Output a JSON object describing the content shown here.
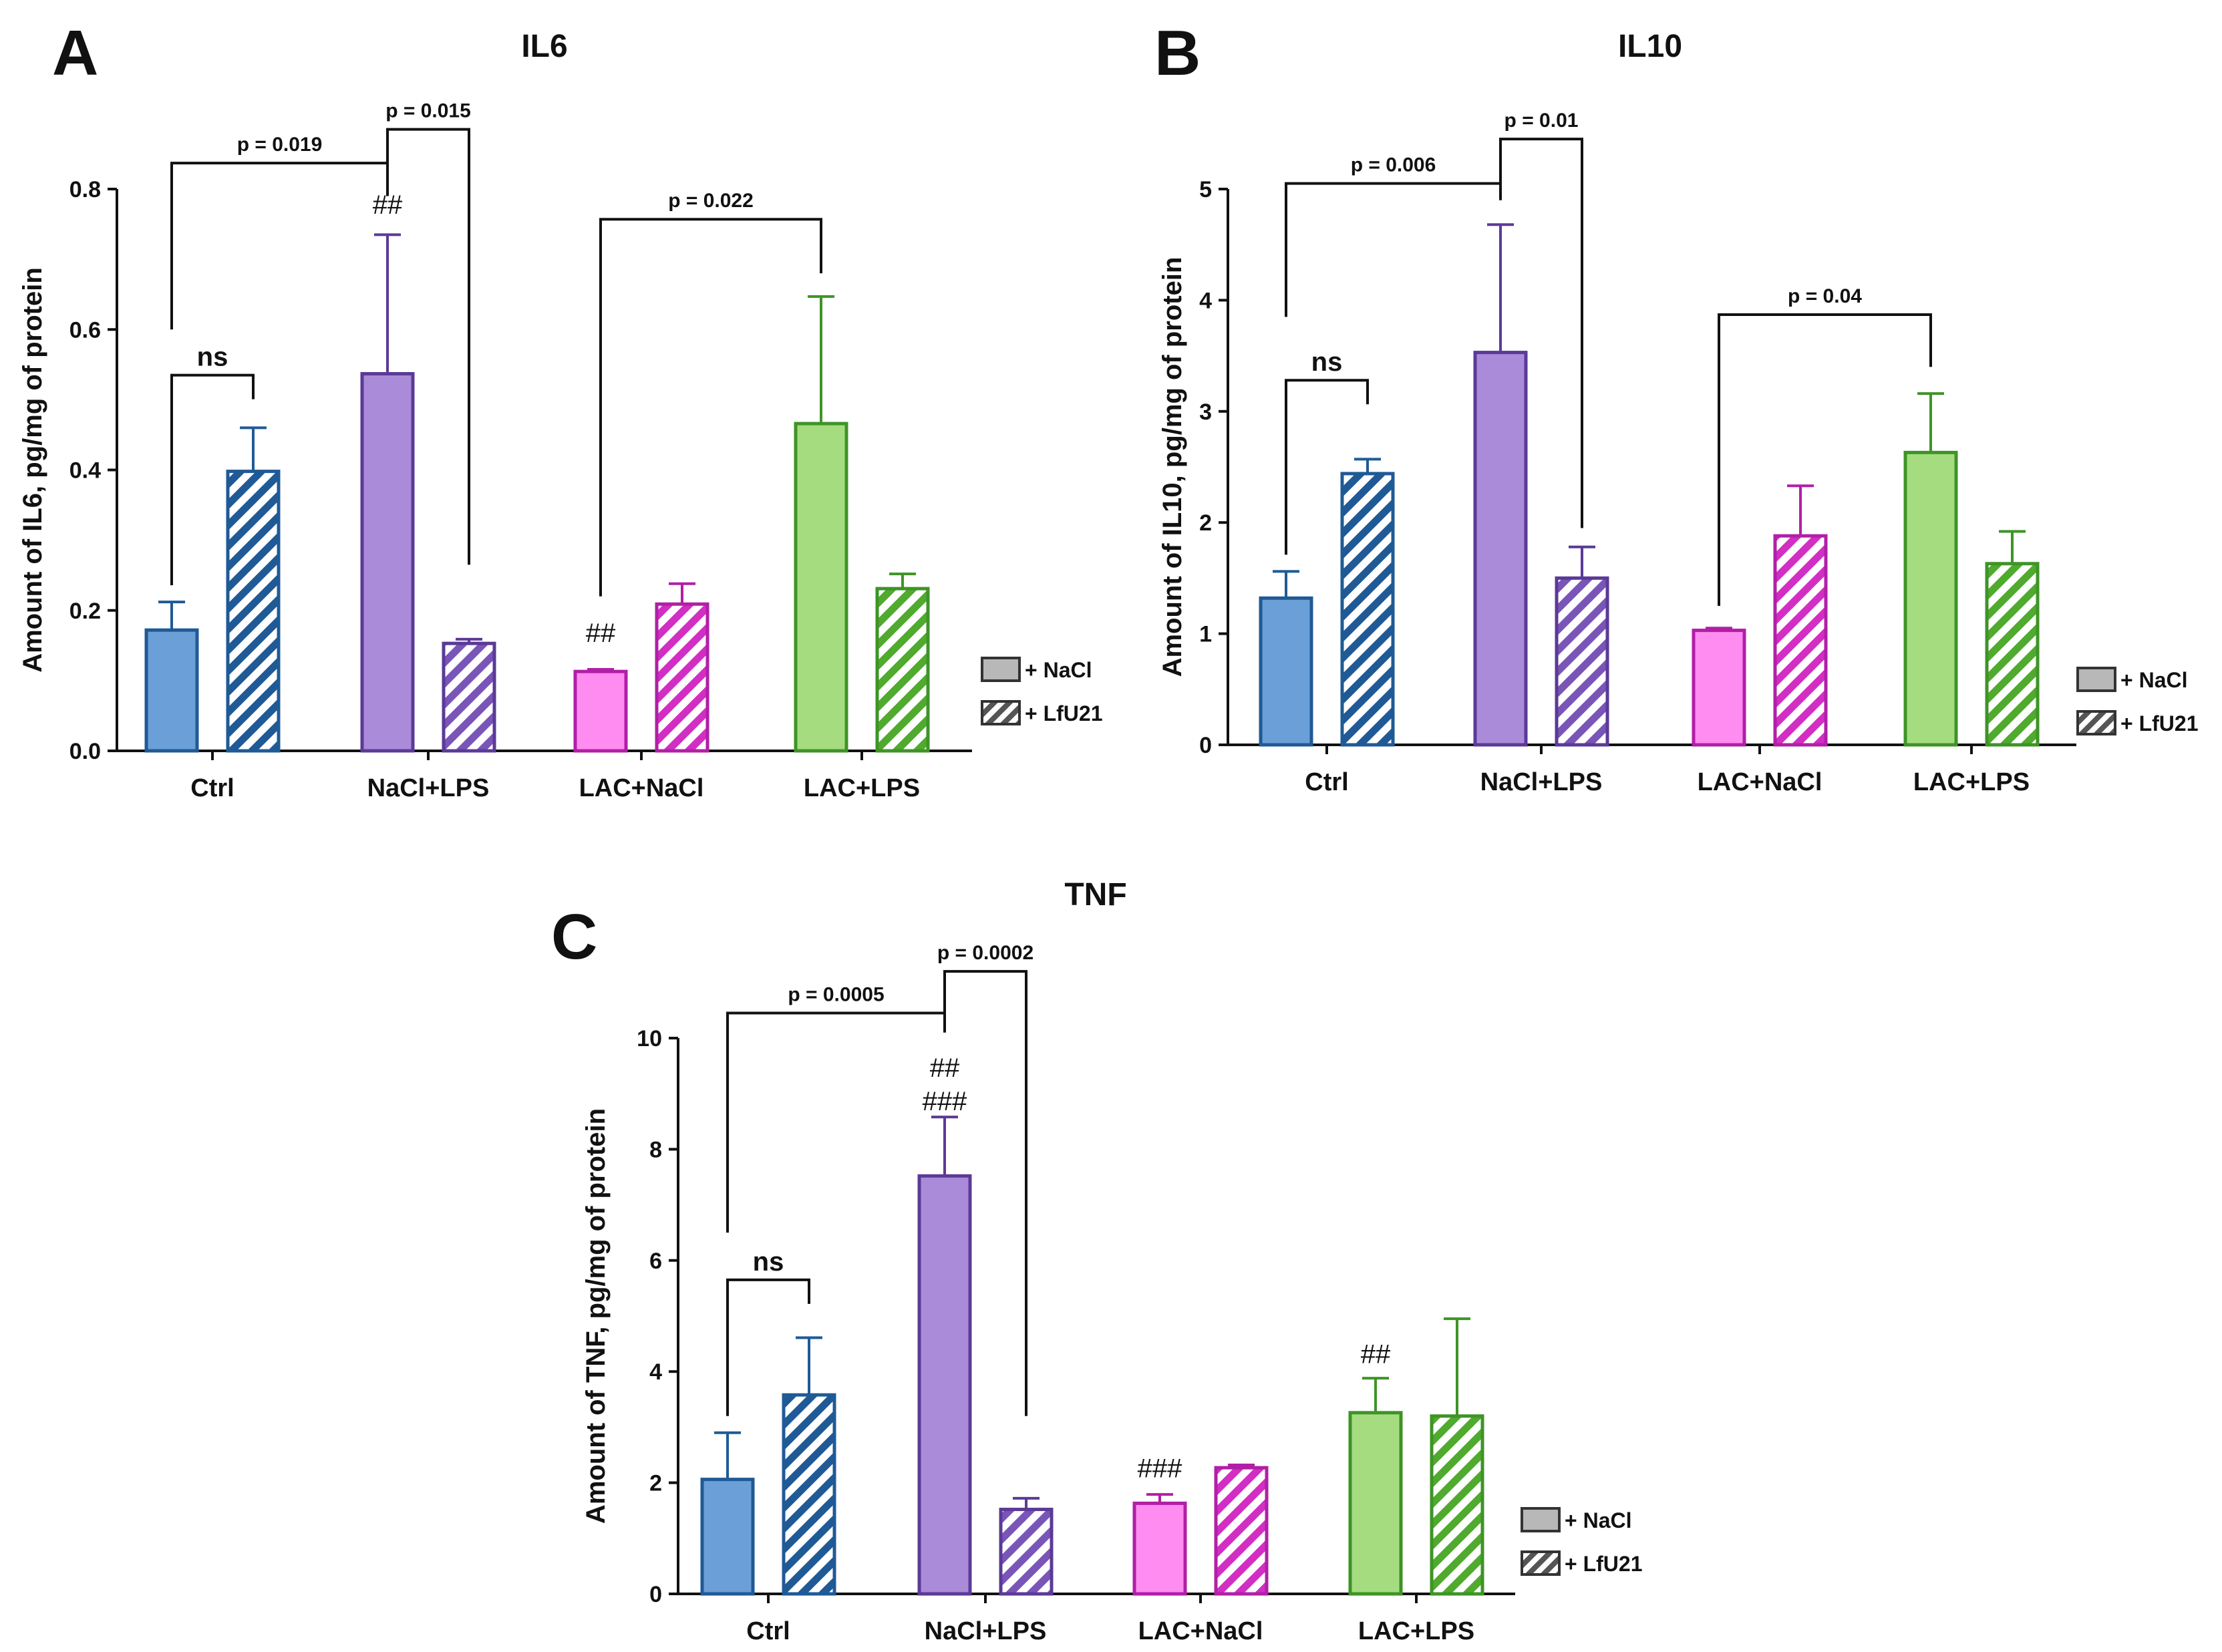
{
  "colors": {
    "Ctrl": {
      "fill": "#6a9fd8",
      "stroke": "#1f5a96"
    },
    "NaCl+LPS": {
      "fill": "#a98bd9",
      "stroke": "#5b3a97"
    },
    "LAC+NaCl": {
      "fill": "#ff8cf0",
      "stroke": "#b11fa6"
    },
    "LAC+LPS": {
      "fill": "#a6dc80",
      "stroke": "#3e9426"
    }
  },
  "legend": {
    "nacl_label": "+ NaCl",
    "lfu21_label": "+ LfU21"
  },
  "chart_data": [
    {
      "panel": "A",
      "type": "bar",
      "title": "IL6",
      "ylabel": "Amount of IL6, pg/mg of protein",
      "ylim": [
        0,
        0.8
      ],
      "yticks": [
        "0.0",
        "0.2",
        "0.4",
        "0.6",
        "0.8"
      ],
      "categories": [
        "Ctrl",
        "NaCl+LPS",
        "LAC+NaCl",
        "LAC+LPS"
      ],
      "series": [
        {
          "name": "+ NaCl",
          "values": [
            0.172,
            0.537,
            0.113,
            0.466
          ],
          "errors": [
            0.04,
            0.198,
            0.003,
            0.181
          ]
        },
        {
          "name": "+ LfU21",
          "values": [
            0.398,
            0.153,
            0.209,
            0.231
          ],
          "errors": [
            0.062,
            0.006,
            0.029,
            0.021
          ]
        }
      ],
      "annotations": [
        {
          "type": "bracket",
          "text": "ns",
          "from": [
            0,
            0
          ],
          "to": [
            0,
            1
          ],
          "level": 0.535,
          "style": "ns"
        },
        {
          "type": "bracket",
          "text": "p = 0.019",
          "from": [
            0,
            0
          ],
          "to": [
            1,
            0
          ],
          "level": 0.837,
          "lo1": 0.6,
          "lo2": 0.79
        },
        {
          "type": "bracket",
          "text": "p = 0.015",
          "from": [
            1,
            0
          ],
          "to": [
            1,
            1
          ],
          "level": 0.885,
          "lo1": 0.795,
          "lo2": 0.265
        },
        {
          "type": "bracket",
          "text": "p = 0.022",
          "from": [
            2,
            0
          ],
          "to": [
            3,
            0
          ],
          "level": 0.757,
          "lo1": 0.22,
          "lo2": 0.68
        },
        {
          "type": "hash",
          "text": "##",
          "at": [
            1,
            0
          ],
          "level": 0.765
        },
        {
          "type": "hash",
          "text": "##",
          "at": [
            2,
            0
          ],
          "level": 0.155
        }
      ]
    },
    {
      "panel": "B",
      "type": "bar",
      "title": "IL10",
      "ylabel": "Amount of IL10, pg/mg of protein",
      "ylim": [
        0,
        5
      ],
      "yticks": [
        "0",
        "1",
        "2",
        "3",
        "4",
        "5"
      ],
      "categories": [
        "Ctrl",
        "NaCl+LPS",
        "LAC+NaCl",
        "LAC+LPS"
      ],
      "series": [
        {
          "name": "+ NaCl",
          "values": [
            1.32,
            3.53,
            1.03,
            2.63
          ],
          "errors": [
            0.24,
            1.15,
            0.02,
            0.53
          ]
        },
        {
          "name": "+ LfU21",
          "values": [
            2.44,
            1.5,
            1.88,
            1.63
          ],
          "errors": [
            0.13,
            0.28,
            0.45,
            0.29
          ]
        }
      ],
      "annotations": [
        {
          "type": "bracket",
          "text": "ns",
          "from": [
            0,
            0
          ],
          "to": [
            0,
            1
          ],
          "level": 3.28,
          "style": "ns"
        },
        {
          "type": "bracket",
          "text": "p = 0.006",
          "from": [
            0,
            0
          ],
          "to": [
            1,
            0
          ],
          "level": 5.05,
          "lo1": 3.85,
          "lo2": 4.9
        },
        {
          "type": "bracket",
          "text": "p = 0.01",
          "from": [
            1,
            0
          ],
          "to": [
            1,
            1
          ],
          "level": 5.45,
          "lo1": 4.9,
          "lo2": 1.95
        },
        {
          "type": "bracket",
          "text": "p = 0.04",
          "from": [
            2,
            0
          ],
          "to": [
            3,
            0
          ],
          "level": 3.87,
          "lo1": 1.25,
          "lo2": 3.4
        }
      ]
    },
    {
      "panel": "C",
      "type": "bar",
      "title": "TNF",
      "ylabel": "Amount of TNF, pg/mg of protein",
      "ylim": [
        0,
        10
      ],
      "yticks": [
        "0",
        "2",
        "4",
        "6",
        "8",
        "10"
      ],
      "categories": [
        "Ctrl",
        "NaCl+LPS",
        "LAC+NaCl",
        "LAC+LPS"
      ],
      "series": [
        {
          "name": "+ NaCl",
          "values": [
            2.06,
            7.52,
            1.63,
            3.26
          ],
          "errors": [
            0.84,
            1.06,
            0.16,
            0.62
          ]
        },
        {
          "name": "+ LfU21",
          "values": [
            3.58,
            1.52,
            2.27,
            3.2
          ],
          "errors": [
            1.03,
            0.2,
            0.05,
            1.75
          ]
        }
      ],
      "annotations": [
        {
          "type": "bracket",
          "text": "ns",
          "from": [
            0,
            0
          ],
          "to": [
            0,
            1
          ],
          "level": 5.65,
          "style": "ns"
        },
        {
          "type": "bracket",
          "text": "p = 0.0005",
          "from": [
            0,
            0
          ],
          "to": [
            1,
            0
          ],
          "level": 10.45,
          "lo1": 6.5,
          "lo2": 10.1
        },
        {
          "type": "bracket",
          "text": "p = 0.0002",
          "from": [
            1,
            0
          ],
          "to": [
            1,
            1
          ],
          "level": 11.2,
          "lo1": 10.1,
          "lo2": 3.2
        },
        {
          "type": "hash",
          "text": "##",
          "at": [
            1,
            0
          ],
          "level": 9.3
        },
        {
          "type": "hash",
          "text": "###",
          "at": [
            1,
            0
          ],
          "level": 8.7
        },
        {
          "type": "hash",
          "text": "###",
          "at": [
            2,
            0
          ],
          "level": 2.1
        },
        {
          "type": "hash",
          "text": "##",
          "at": [
            3,
            0
          ],
          "level": 4.15
        }
      ]
    }
  ]
}
